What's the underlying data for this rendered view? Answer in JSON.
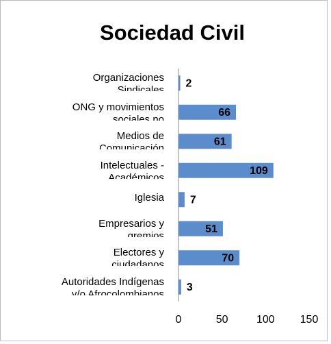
{
  "chart_data": {
    "type": "bar",
    "orientation": "horizontal",
    "title": "Sociedad Civil",
    "categories": [
      "Organizaciones\nSindicales",
      "ONG y movimientos\nsociales no",
      "Medios de\nComunicación",
      "Intelectuales -\nAcadémicos",
      "Iglesia",
      "Empresarios y\ngremios",
      "Electores y\nciudadanos",
      "Autoridades Indígenas\ny/o Afrocolombianos"
    ],
    "values": [
      2,
      66,
      61,
      109,
      7,
      51,
      70,
      3
    ],
    "color": "#5b8ccc",
    "xlim": [
      0,
      150
    ],
    "xticks": [
      0,
      50,
      100,
      150
    ],
    "grid": false
  }
}
